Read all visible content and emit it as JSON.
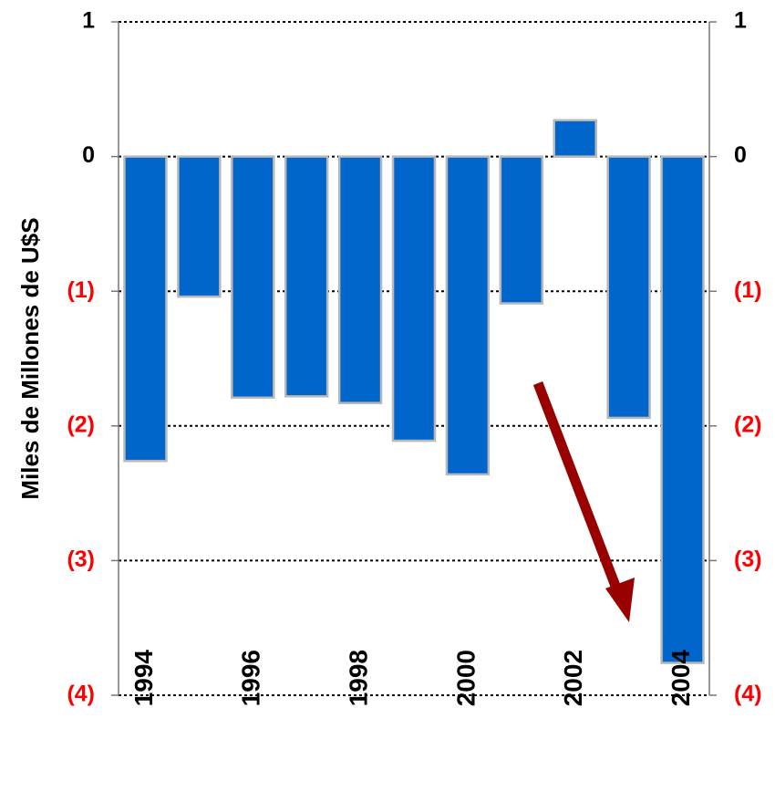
{
  "chart_data": {
    "type": "bar",
    "y_label": "Miles de Millones de U$S",
    "categories": [
      "1994",
      null,
      "1996",
      null,
      "1998",
      null,
      "2000",
      null,
      "2002",
      null,
      "2004"
    ],
    "values": [
      -2.26,
      -1.04,
      -1.79,
      -1.78,
      -1.83,
      -2.11,
      -2.36,
      -1.09,
      0.27,
      -1.94,
      -3.76
    ],
    "color": "#0066cc",
    "edge_color": "#b8b8b8",
    "ylim": [
      -4,
      1
    ],
    "yticks": [
      {
        "value": -4,
        "label": "(4)"
      },
      {
        "value": -3,
        "label": "(3)"
      },
      {
        "value": -2,
        "label": "(2)"
      },
      {
        "value": -1,
        "label": "(1)"
      },
      0,
      1
    ],
    "tick_label_color": "#000000",
    "negative_tick_label_color": "#ff0000",
    "grid": true
  }
}
